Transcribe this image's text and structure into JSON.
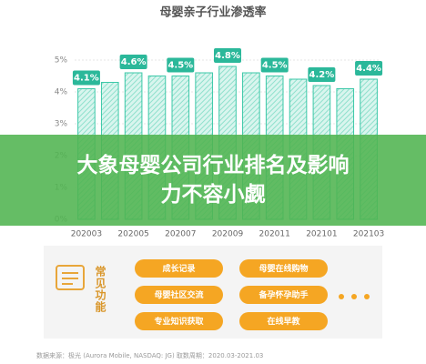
{
  "chart_data": {
    "type": "bar",
    "title": "母婴亲子行业渗透率",
    "categories": [
      "202003",
      null,
      "202005",
      null,
      "202007",
      null,
      "202009",
      null,
      "202011",
      null,
      "202101",
      null,
      "202103"
    ],
    "values": [
      4.1,
      4.3,
      4.6,
      4.5,
      4.5,
      4.6,
      4.8,
      4.6,
      4.5,
      4.4,
      4.2,
      4.1,
      4.4
    ],
    "value_labels": [
      "4.1%",
      null,
      "4.6%",
      null,
      "4.5%",
      null,
      "4.8%",
      null,
      "4.5%",
      null,
      "4.2%",
      null,
      "4.4%"
    ],
    "color": "#3cc8a8",
    "ylim": [
      0,
      5
    ],
    "yticks": [
      {
        "value": 0,
        "label": "0%"
      },
      {
        "value": 1,
        "label": "1%"
      },
      {
        "value": 2,
        "label": "2%"
      },
      {
        "value": 3,
        "label": "3%"
      },
      {
        "value": 4,
        "label": "4%"
      },
      {
        "value": 5,
        "label": "5%"
      }
    ],
    "grid": true
  },
  "banner": "大象母婴公司行业排名及影响力不容小觑",
  "features": {
    "heading": "常见功能",
    "items": [
      "成长记录",
      "母婴在线购物",
      "母婴社区交流",
      "备孕怀孕助手",
      "专业知识获取",
      "在线早教"
    ]
  },
  "source": "数据来源：极光 (Aurora Mobile, NASDAQ: JG) 取数周期：2020.03-2021.03"
}
